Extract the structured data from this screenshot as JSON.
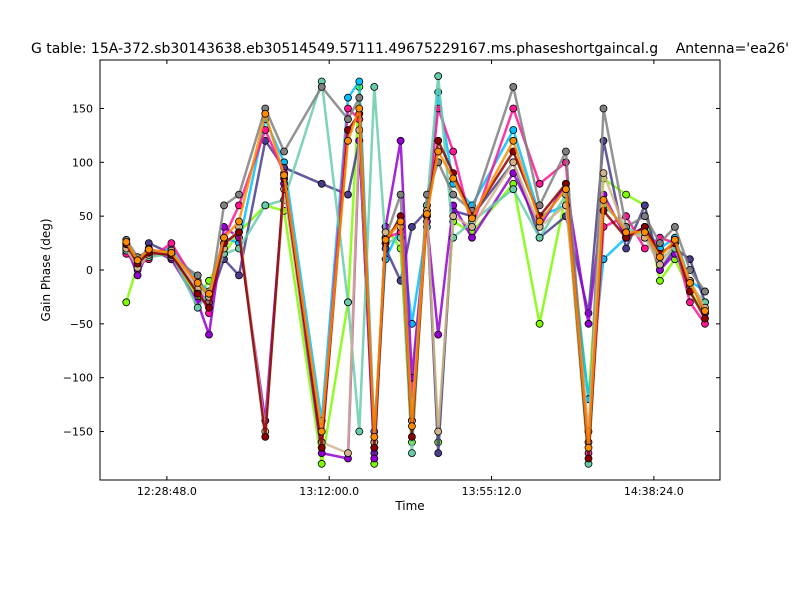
{
  "chart_data": {
    "type": "line",
    "title": "G table: 15A-372.sb30143638.eb30514549.57111.49675229167.ms.phaseshortgaincal.g",
    "antenna_label": "Antenna='ea26'",
    "xlabel": "Time",
    "ylabel": "Gain Phase (deg)",
    "xlim": [
      "12:11:00",
      "14:56:00"
    ],
    "ylim": [
      -195,
      195
    ],
    "x_ticks": [
      "12:28:48.0",
      "13:12:00.0",
      "13:55:12.0",
      "14:38:24.0"
    ],
    "y_ticks": [
      -150,
      -100,
      -50,
      0,
      50,
      100,
      150
    ],
    "grid": false,
    "marker": "circle",
    "series": [
      {
        "color": "#7cfc00",
        "x": [
          "12:18:00",
          "12:21:00",
          "12:24:00",
          "12:30:00",
          "12:37:00",
          "12:40:00",
          "12:44:00",
          "12:48:00",
          "12:55:00",
          "13:00:00",
          "13:10:00",
          "13:17:00",
          "13:20:00",
          "13:24:00",
          "13:27:00",
          "13:31:00",
          "13:34:00",
          "13:38:00",
          "13:41:00",
          "13:45:00",
          "13:50:00",
          "14:01:00",
          "14:08:00",
          "14:15:00",
          "14:21:00",
          "14:25:00",
          "14:31:00",
          "14:36:00",
          "14:40:00",
          "14:44:00",
          "14:48:00",
          "14:52:00"
        ],
        "y": [
          -30,
          5,
          20,
          10,
          -25,
          -10,
          15,
          35,
          60,
          55,
          -180,
          -30,
          170,
          -180,
          40,
          20,
          -160,
          60,
          -160,
          45,
          35,
          80,
          -50,
          70,
          -120,
          85,
          70,
          60,
          -10,
          10,
          -20,
          -40
        ]
      },
      {
        "color": "#00bfff",
        "x": [
          "12:18:00",
          "12:21:00",
          "12:24:00",
          "12:30:00",
          "12:37:00",
          "12:40:00",
          "12:44:00",
          "12:48:00",
          "12:55:00",
          "13:00:00",
          "13:10:00",
          "13:17:00",
          "13:20:00",
          "13:24:00",
          "13:27:00",
          "13:31:00",
          "13:34:00",
          "13:38:00",
          "13:41:00",
          "13:45:00",
          "13:50:00",
          "14:01:00",
          "14:08:00",
          "14:15:00",
          "14:21:00",
          "14:25:00",
          "14:31:00",
          "14:36:00",
          "14:40:00",
          "14:44:00",
          "14:48:00",
          "14:52:00"
        ],
        "y": [
          25,
          10,
          15,
          20,
          -10,
          -20,
          30,
          25,
          140,
          100,
          -140,
          160,
          175,
          -150,
          10,
          40,
          -50,
          40,
          165,
          80,
          60,
          130,
          50,
          60,
          -120,
          10,
          30,
          40,
          20,
          30,
          -10,
          -20
        ]
      },
      {
        "color": "#483d8b",
        "x": [
          "12:18:00",
          "12:21:00",
          "12:24:00",
          "12:30:00",
          "12:37:00",
          "12:40:00",
          "12:44:00",
          "12:48:00",
          "12:55:00",
          "13:00:00",
          "13:10:00",
          "13:17:00",
          "13:20:00",
          "13:24:00",
          "13:27:00",
          "13:31:00",
          "13:34:00",
          "13:38:00",
          "13:41:00",
          "13:45:00",
          "13:50:00",
          "14:01:00",
          "14:08:00",
          "14:15:00",
          "14:21:00",
          "14:25:00",
          "14:31:00",
          "14:36:00",
          "14:40:00",
          "14:44:00",
          "14:48:00",
          "14:52:00"
        ],
        "y": [
          20,
          0,
          25,
          15,
          -20,
          -30,
          10,
          -5,
          120,
          95,
          80,
          70,
          120,
          -170,
          20,
          -10,
          40,
          55,
          -170,
          55,
          50,
          100,
          30,
          50,
          -40,
          120,
          20,
          60,
          0,
          20,
          10,
          -30
        ]
      },
      {
        "color": "#ff1493",
        "x": [
          "12:18:00",
          "12:21:00",
          "12:24:00",
          "12:30:00",
          "12:37:00",
          "12:40:00",
          "12:44:00",
          "12:48:00",
          "12:55:00",
          "13:00:00",
          "13:10:00",
          "13:17:00",
          "13:20:00",
          "13:24:00",
          "13:27:00",
          "13:31:00",
          "13:34:00",
          "13:38:00",
          "13:41:00",
          "13:45:00",
          "13:50:00",
          "14:01:00",
          "14:08:00",
          "14:15:00",
          "14:21:00",
          "14:25:00",
          "14:31:00",
          "14:36:00",
          "14:40:00",
          "14:44:00",
          "14:48:00",
          "14:52:00"
        ],
        "y": [
          15,
          5,
          10,
          25,
          -15,
          -40,
          30,
          60,
          130,
          90,
          -160,
          150,
          140,
          -160,
          30,
          35,
          -120,
          50,
          150,
          110,
          40,
          150,
          80,
          100,
          -170,
          40,
          50,
          20,
          30,
          25,
          -30,
          -50
        ]
      },
      {
        "color": "#9400d3",
        "x": [
          "12:18:00",
          "12:21:00",
          "12:24:00",
          "12:30:00",
          "12:37:00",
          "12:40:00",
          "12:44:00",
          "12:48:00",
          "12:55:00",
          "13:00:00",
          "13:10:00",
          "13:17:00",
          "13:20:00",
          "13:24:00",
          "13:27:00",
          "13:31:00",
          "13:34:00",
          "13:38:00",
          "13:41:00",
          "13:45:00",
          "13:50:00",
          "14:01:00",
          "14:08:00",
          "14:15:00",
          "14:21:00",
          "14:25:00",
          "14:31:00",
          "14:36:00",
          "14:40:00",
          "14:44:00",
          "14:48:00",
          "14:52:00"
        ],
        "y": [
          22,
          -5,
          20,
          10,
          -30,
          -60,
          40,
          30,
          -140,
          80,
          -170,
          -175,
          120,
          -175,
          40,
          120,
          -100,
          45,
          -60,
          60,
          30,
          90,
          40,
          80,
          -50,
          70,
          30,
          40,
          0,
          15,
          -10,
          -40
        ]
      },
      {
        "color": "#66cdaa",
        "x": [
          "12:18:00",
          "12:21:00",
          "12:24:00",
          "12:30:00",
          "12:37:00",
          "12:40:00",
          "12:44:00",
          "12:48:00",
          "12:55:00",
          "13:00:00",
          "13:10:00",
          "13:17:00",
          "13:20:00",
          "13:24:00",
          "13:27:00",
          "13:31:00",
          "13:34:00",
          "13:38:00",
          "13:41:00",
          "13:45:00",
          "13:50:00",
          "14:01:00",
          "14:08:00",
          "14:15:00",
          "14:21:00",
          "14:25:00",
          "14:31:00",
          "14:36:00",
          "14:40:00",
          "14:44:00",
          "14:48:00",
          "14:52:00"
        ],
        "y": [
          18,
          8,
          12,
          15,
          -35,
          -20,
          15,
          20,
          60,
          65,
          175,
          -30,
          -150,
          170,
          25,
          30,
          -170,
          60,
          180,
          30,
          45,
          75,
          30,
          70,
          -180,
          60,
          40,
          30,
          10,
          20,
          -15,
          -30
        ]
      },
      {
        "color": "#808080",
        "x": [
          "12:18:00",
          "12:21:00",
          "12:24:00",
          "12:30:00",
          "12:37:00",
          "12:40:00",
          "12:44:00",
          "12:48:00",
          "12:55:00",
          "13:00:00",
          "13:10:00",
          "13:17:00",
          "13:20:00",
          "13:24:00",
          "13:27:00",
          "13:31:00",
          "13:34:00",
          "13:38:00",
          "13:41:00",
          "13:45:00",
          "13:50:00",
          "14:01:00",
          "14:08:00",
          "14:15:00",
          "14:21:00",
          "14:25:00",
          "14:31:00",
          "14:36:00",
          "14:40:00",
          "14:44:00",
          "14:48:00",
          "14:52:00"
        ],
        "y": [
          28,
          12,
          18,
          12,
          -5,
          -30,
          60,
          70,
          150,
          110,
          170,
          140,
          160,
          -165,
          30,
          70,
          -140,
          70,
          100,
          70,
          55,
          170,
          60,
          110,
          -160,
          150,
          40,
          50,
          25,
          40,
          0,
          -20
        ]
      },
      {
        "color": "#d2b48c",
        "x": [
          "12:18:00",
          "12:21:00",
          "12:24:00",
          "12:30:00",
          "12:37:00",
          "12:40:00",
          "12:44:00",
          "12:48:00",
          "12:55:00",
          "13:00:00",
          "13:10:00",
          "13:17:00",
          "13:20:00",
          "13:24:00",
          "13:27:00",
          "13:31:00",
          "13:34:00",
          "13:38:00",
          "13:41:00",
          "13:45:00",
          "13:50:00",
          "14:01:00",
          "14:08:00",
          "14:15:00",
          "14:21:00",
          "14:25:00",
          "14:31:00",
          "14:36:00",
          "14:40:00",
          "14:44:00",
          "14:48:00",
          "14:52:00"
        ],
        "y": [
          20,
          2,
          14,
          18,
          -18,
          -25,
          20,
          40,
          -150,
          75,
          -160,
          -170,
          130,
          -160,
          35,
          40,
          -140,
          55,
          -150,
          50,
          40,
          100,
          40,
          60,
          -150,
          90,
          35,
          30,
          5,
          25,
          -10,
          -35
        ]
      },
      {
        "color": "#8b0000",
        "x": [
          "12:18:00",
          "12:21:00",
          "12:24:00",
          "12:30:00",
          "12:37:00",
          "12:40:00",
          "12:44:00",
          "12:48:00",
          "12:55:00",
          "13:00:00",
          "13:10:00",
          "13:17:00",
          "13:20:00",
          "13:24:00",
          "13:27:00",
          "13:31:00",
          "13:34:00",
          "13:38:00",
          "13:41:00",
          "13:45:00",
          "13:50:00",
          "14:01:00",
          "14:08:00",
          "14:15:00",
          "14:21:00",
          "14:25:00",
          "14:31:00",
          "14:36:00",
          "14:40:00",
          "14:44:00",
          "14:48:00",
          "14:52:00"
        ],
        "y": [
          24,
          6,
          16,
          14,
          -22,
          -35,
          25,
          35,
          -155,
          85,
          -165,
          130,
          145,
          -165,
          25,
          50,
          -155,
          50,
          120,
          90,
          50,
          110,
          50,
          80,
          -175,
          55,
          30,
          40,
          15,
          25,
          -20,
          -45
        ]
      },
      {
        "color": "#ff8c00",
        "x": [
          "12:18:00",
          "12:21:00",
          "12:24:00",
          "12:30:00",
          "12:37:00",
          "12:40:00",
          "12:44:00",
          "12:48:00",
          "12:55:00",
          "13:00:00",
          "13:10:00",
          "13:17:00",
          "13:20:00",
          "13:24:00",
          "13:27:00",
          "13:31:00",
          "13:34:00",
          "13:38:00",
          "13:41:00",
          "13:45:00",
          "13:50:00",
          "14:01:00",
          "14:08:00",
          "14:15:00",
          "14:21:00",
          "14:25:00",
          "14:31:00",
          "14:36:00",
          "14:40:00",
          "14:44:00",
          "14:48:00",
          "14:52:00"
        ],
        "y": [
          26,
          9,
          19,
          16,
          -12,
          -22,
          30,
          45,
          145,
          88,
          -150,
          120,
          150,
          -155,
          28,
          45,
          -145,
          52,
          110,
          85,
          48,
          120,
          45,
          75,
          -165,
          65,
          35,
          35,
          12,
          28,
          -12,
          -38
        ]
      }
    ]
  }
}
